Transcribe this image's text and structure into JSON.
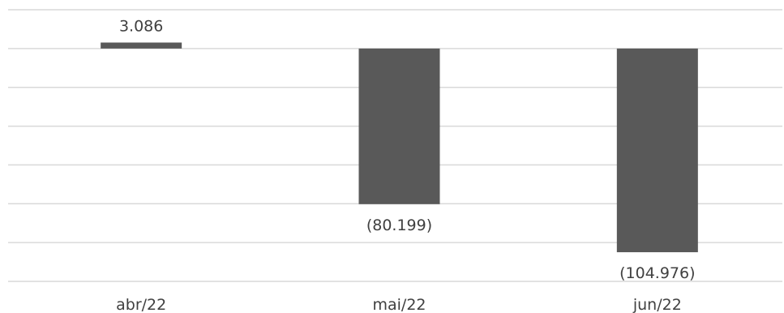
{
  "chart_data": {
    "type": "bar",
    "categories": [
      "abr/22",
      "mai/22",
      "jun/22"
    ],
    "values": [
      3086,
      -80199,
      -104976
    ],
    "value_labels": [
      "3.086",
      "(80.199)",
      "(104.976)"
    ],
    "title": "",
    "xlabel": "",
    "ylabel": "",
    "ylim": [
      -120000,
      20000
    ],
    "grid": true,
    "legend": "none",
    "colors": {
      "bar": "#595959",
      "grid": "#d9d9d9",
      "text": "#404040"
    }
  }
}
